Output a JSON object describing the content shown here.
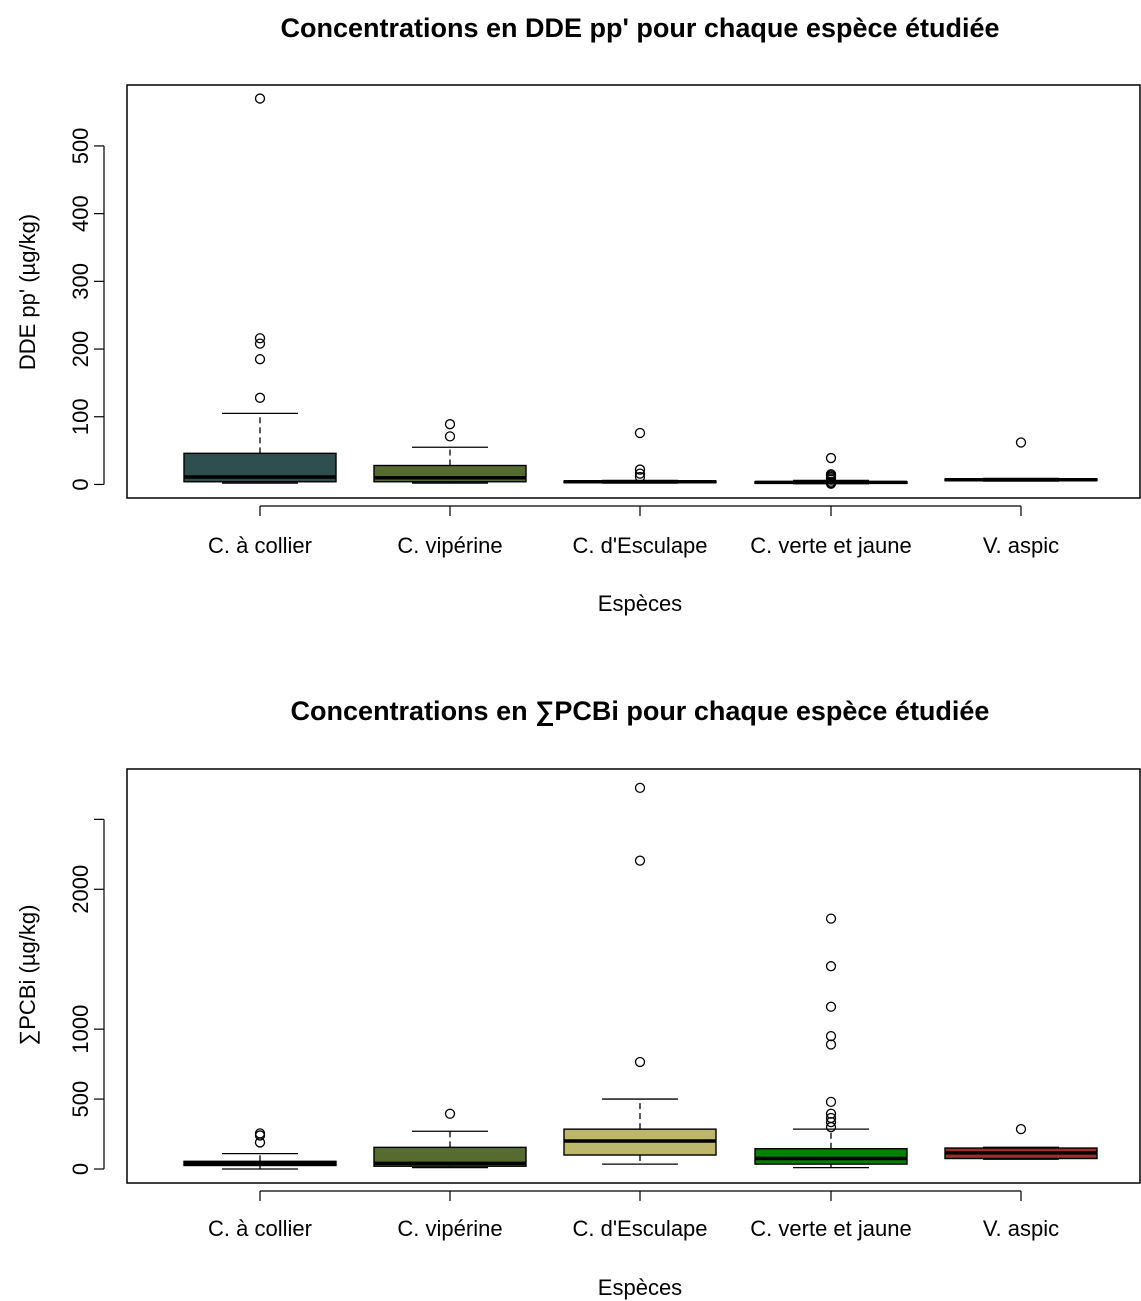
{
  "chart_data": [
    {
      "type": "boxplot",
      "title": "Concentrations en DDE pp' pour chaque espèce étudiée",
      "xlabel": "Espèces",
      "ylabel": "DDE pp' (µg/kg)",
      "ylim": [
        -20,
        590
      ],
      "yticks": [
        0,
        100,
        200,
        300,
        400,
        500
      ],
      "categories": [
        "C. à collier",
        "C. vipérine",
        "C. d'Esculape",
        "C. verte et jaune",
        "V. aspic"
      ],
      "boxes": [
        {
          "category": "C. à collier",
          "color": "#2f4f4f",
          "whisker_low": 2,
          "q1": 4,
          "median": 11,
          "q3": 46,
          "whisker_high": 105,
          "outliers": [
            128,
            185,
            208,
            216,
            570
          ]
        },
        {
          "category": "C. vipérine",
          "color": "#556b2f",
          "whisker_low": 2,
          "q1": 4,
          "median": 10,
          "q3": 28,
          "whisker_high": 55,
          "outliers": [
            71,
            89
          ]
        },
        {
          "category": "C. d'Esculape",
          "color": "#bdb76b",
          "whisker_low": 2,
          "q1": 3,
          "median": 4,
          "q3": 5,
          "whisker_high": 6,
          "outliers": [
            11,
            16,
            22,
            76
          ]
        },
        {
          "category": "C. verte et jaune",
          "color": "#008000",
          "whisker_low": 1,
          "q1": 2,
          "median": 3,
          "q3": 4,
          "whisker_high": 6,
          "outliers": [
            1,
            2,
            4,
            7,
            9,
            11,
            13,
            15,
            39
          ]
        },
        {
          "category": "V. aspic",
          "color": "#a52a2a",
          "whisker_low": 5,
          "q1": 6,
          "median": 7,
          "q3": 8,
          "whisker_high": 9,
          "outliers": [
            62
          ]
        }
      ]
    },
    {
      "type": "boxplot",
      "title": "Concentrations en ∑PCBi pour chaque espèce étudiée",
      "xlabel": "Espèces",
      "ylabel": "∑PCBi (µg/kg)",
      "ylim": [
        -100,
        2860
      ],
      "yticks": [
        0,
        500,
        1000,
        2000
      ],
      "categories": [
        "C. à collier",
        "C. vipérine",
        "C. d'Esculape",
        "C. verte et jaune",
        "V. aspic"
      ],
      "boxes": [
        {
          "category": "C. à collier",
          "color": "#2f4f4f",
          "whisker_low": 0,
          "q1": 25,
          "median": 40,
          "q3": 55,
          "whisker_high": 110,
          "outliers": [
            190,
            240,
            255
          ]
        },
        {
          "category": "C. vipérine",
          "color": "#556b2f",
          "whisker_low": 10,
          "q1": 20,
          "median": 40,
          "q3": 155,
          "whisker_high": 270,
          "outliers": [
            395
          ]
        },
        {
          "category": "C. d'Esculape",
          "color": "#bdb76b",
          "whisker_low": 35,
          "q1": 100,
          "median": 200,
          "q3": 285,
          "whisker_high": 500,
          "outliers": [
            765,
            2205,
            2725
          ]
        },
        {
          "category": "C. verte et jaune",
          "color": "#008000",
          "whisker_low": 10,
          "q1": 35,
          "median": 75,
          "q3": 145,
          "whisker_high": 285,
          "outliers": [
            300,
            335,
            365,
            395,
            480,
            890,
            950,
            1160,
            1450,
            1790
          ]
        },
        {
          "category": "V. aspic",
          "color": "#a52a2a",
          "whisker_low": 70,
          "q1": 75,
          "median": 115,
          "q3": 150,
          "whisker_high": 155,
          "outliers": [
            285
          ]
        }
      ]
    }
  ]
}
